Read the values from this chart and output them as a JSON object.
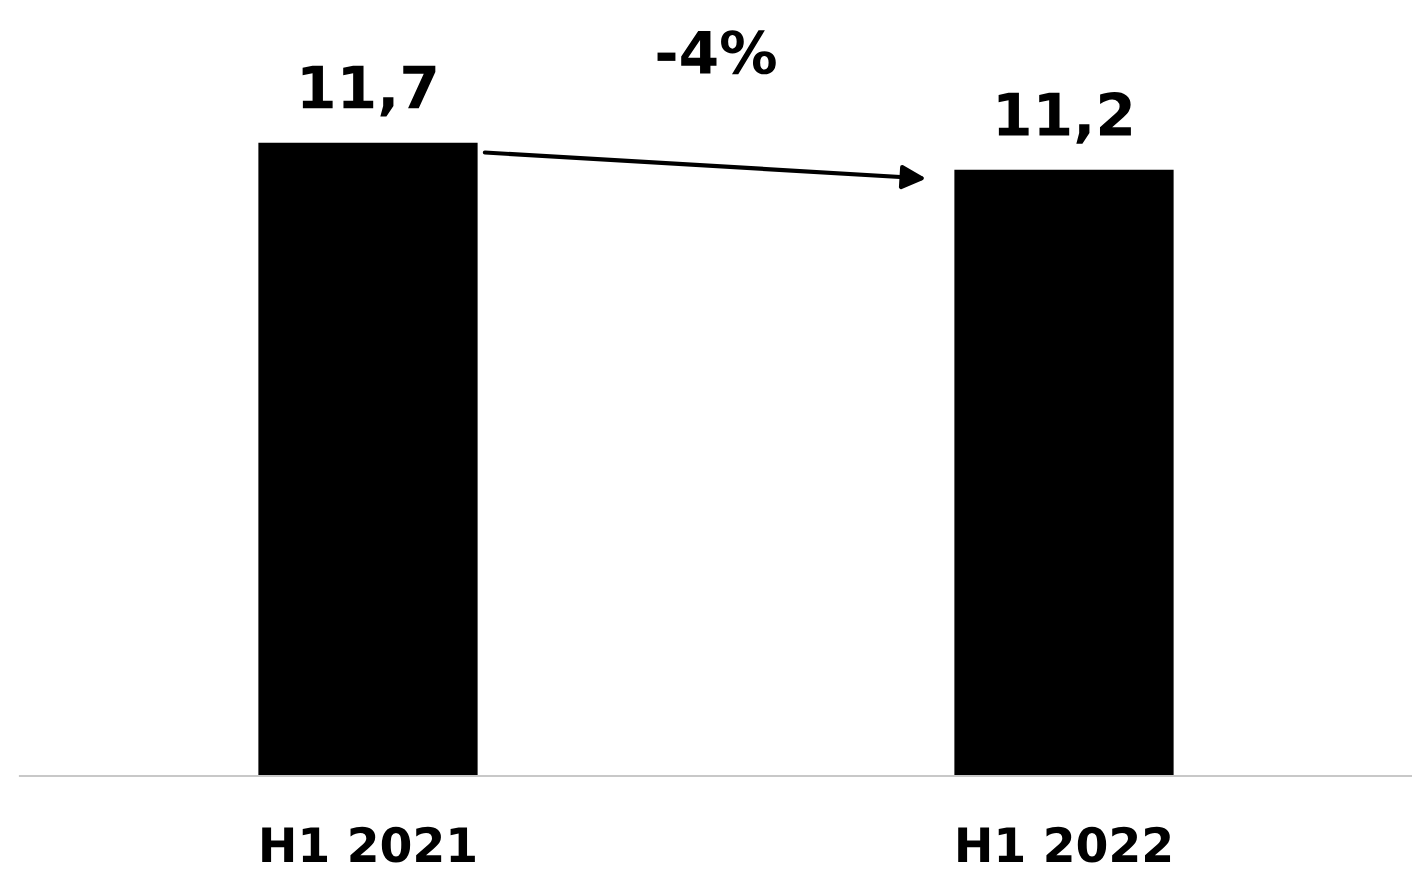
{
  "chart_data": {
    "type": "bar",
    "categories": [
      "H1 2021",
      "H1 2022"
    ],
    "values": [
      11.7,
      11.2
    ],
    "value_labels": [
      "11,7",
      "11,2"
    ],
    "color": "#000000",
    "annotations": [
      "-4%"
    ],
    "grid": false,
    "legend": false
  }
}
